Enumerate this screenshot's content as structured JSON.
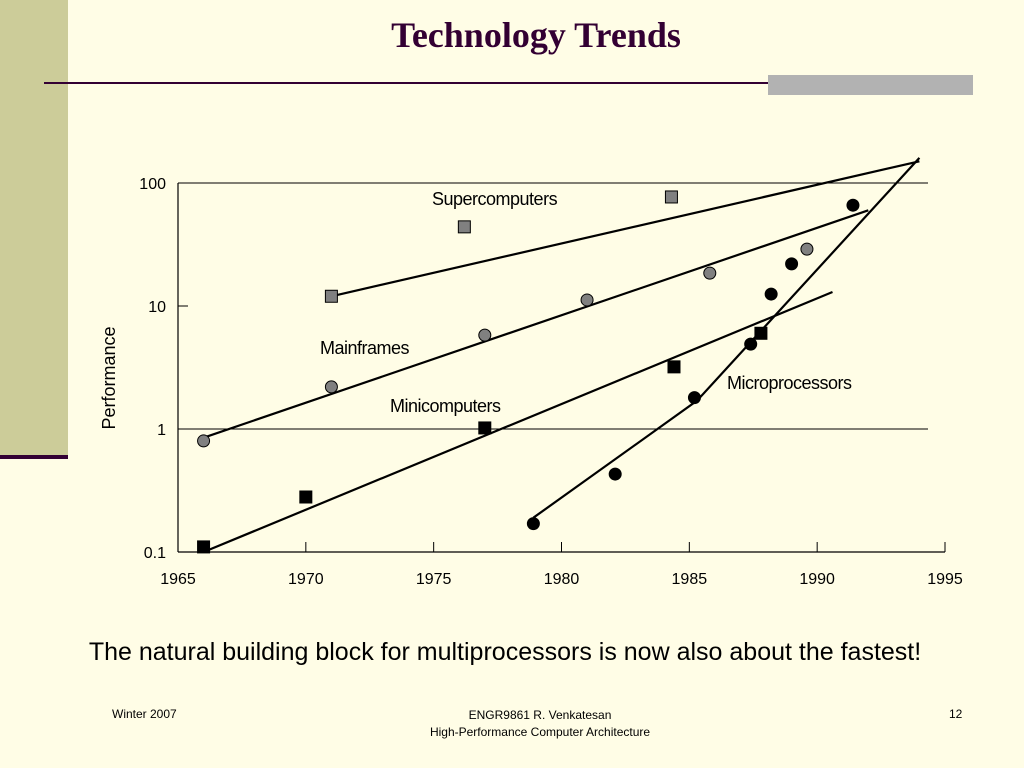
{
  "slide": {
    "title": "Technology Trends",
    "caption": "The natural building block for multiprocessors is now also about the fastest!",
    "footer_left": "Winter 2007",
    "footer_center_line1": "ENGR9861   R. Venkatesan",
    "footer_center_line2": "High-Performance Computer Architecture",
    "page_number": "12"
  },
  "colors": {
    "background": "#FFFDE6",
    "sidebar": "#CCCC99",
    "title": "#330033",
    "gray_marker": "#808080",
    "black_marker": "#000000"
  },
  "chart_data": {
    "type": "scatter",
    "title": "",
    "xlabel": "",
    "ylabel": "Performance",
    "xlim": [
      1965,
      1995
    ],
    "ylim": [
      0.1,
      100
    ],
    "yscale": "log",
    "x_ticks": [
      "1965",
      "1970",
      "1975",
      "1980",
      "1985",
      "1990",
      "1995"
    ],
    "y_ticks": [
      "0.1",
      "1",
      "10",
      "100"
    ],
    "grid_lines_y": [
      1,
      100
    ],
    "series": [
      {
        "name": "Supercomputers",
        "marker": "square",
        "fill": "gray",
        "points": [
          [
            1971,
            12
          ],
          [
            1976.2,
            44
          ],
          [
            1984.3,
            77
          ]
        ],
        "trend": [
          [
            1971,
            12
          ],
          [
            1994,
            150
          ]
        ]
      },
      {
        "name": "Mainframes",
        "marker": "circle",
        "fill": "gray",
        "points": [
          [
            1966,
            0.8
          ],
          [
            1971,
            2.2
          ],
          [
            1977,
            5.8
          ],
          [
            1981,
            11.2
          ],
          [
            1985.8,
            18.5
          ],
          [
            1989.6,
            29
          ]
        ],
        "trend": [
          [
            1966,
            0.85
          ],
          [
            1992,
            60
          ]
        ]
      },
      {
        "name": "Minicomputers",
        "marker": "square",
        "fill": "black",
        "points": [
          [
            1966,
            0.11
          ],
          [
            1970,
            0.28
          ],
          [
            1977,
            1.02
          ],
          [
            1984.4,
            3.2
          ],
          [
            1987.8,
            6
          ]
        ],
        "trend": [
          [
            1966,
            0.1
          ],
          [
            1990.6,
            13
          ]
        ]
      },
      {
        "name": "Microprocessors",
        "marker": "circle",
        "fill": "black",
        "points": [
          [
            1978.9,
            0.17
          ],
          [
            1982.1,
            0.43
          ],
          [
            1985.2,
            1.8
          ],
          [
            1987.4,
            4.9
          ],
          [
            1988.2,
            12.5
          ],
          [
            1989,
            22
          ],
          [
            1991.4,
            66
          ]
        ],
        "trend": [
          [
            1978.9,
            0.19
          ],
          [
            1985.3,
            1.7
          ],
          [
            1994,
            160
          ]
        ]
      }
    ]
  }
}
